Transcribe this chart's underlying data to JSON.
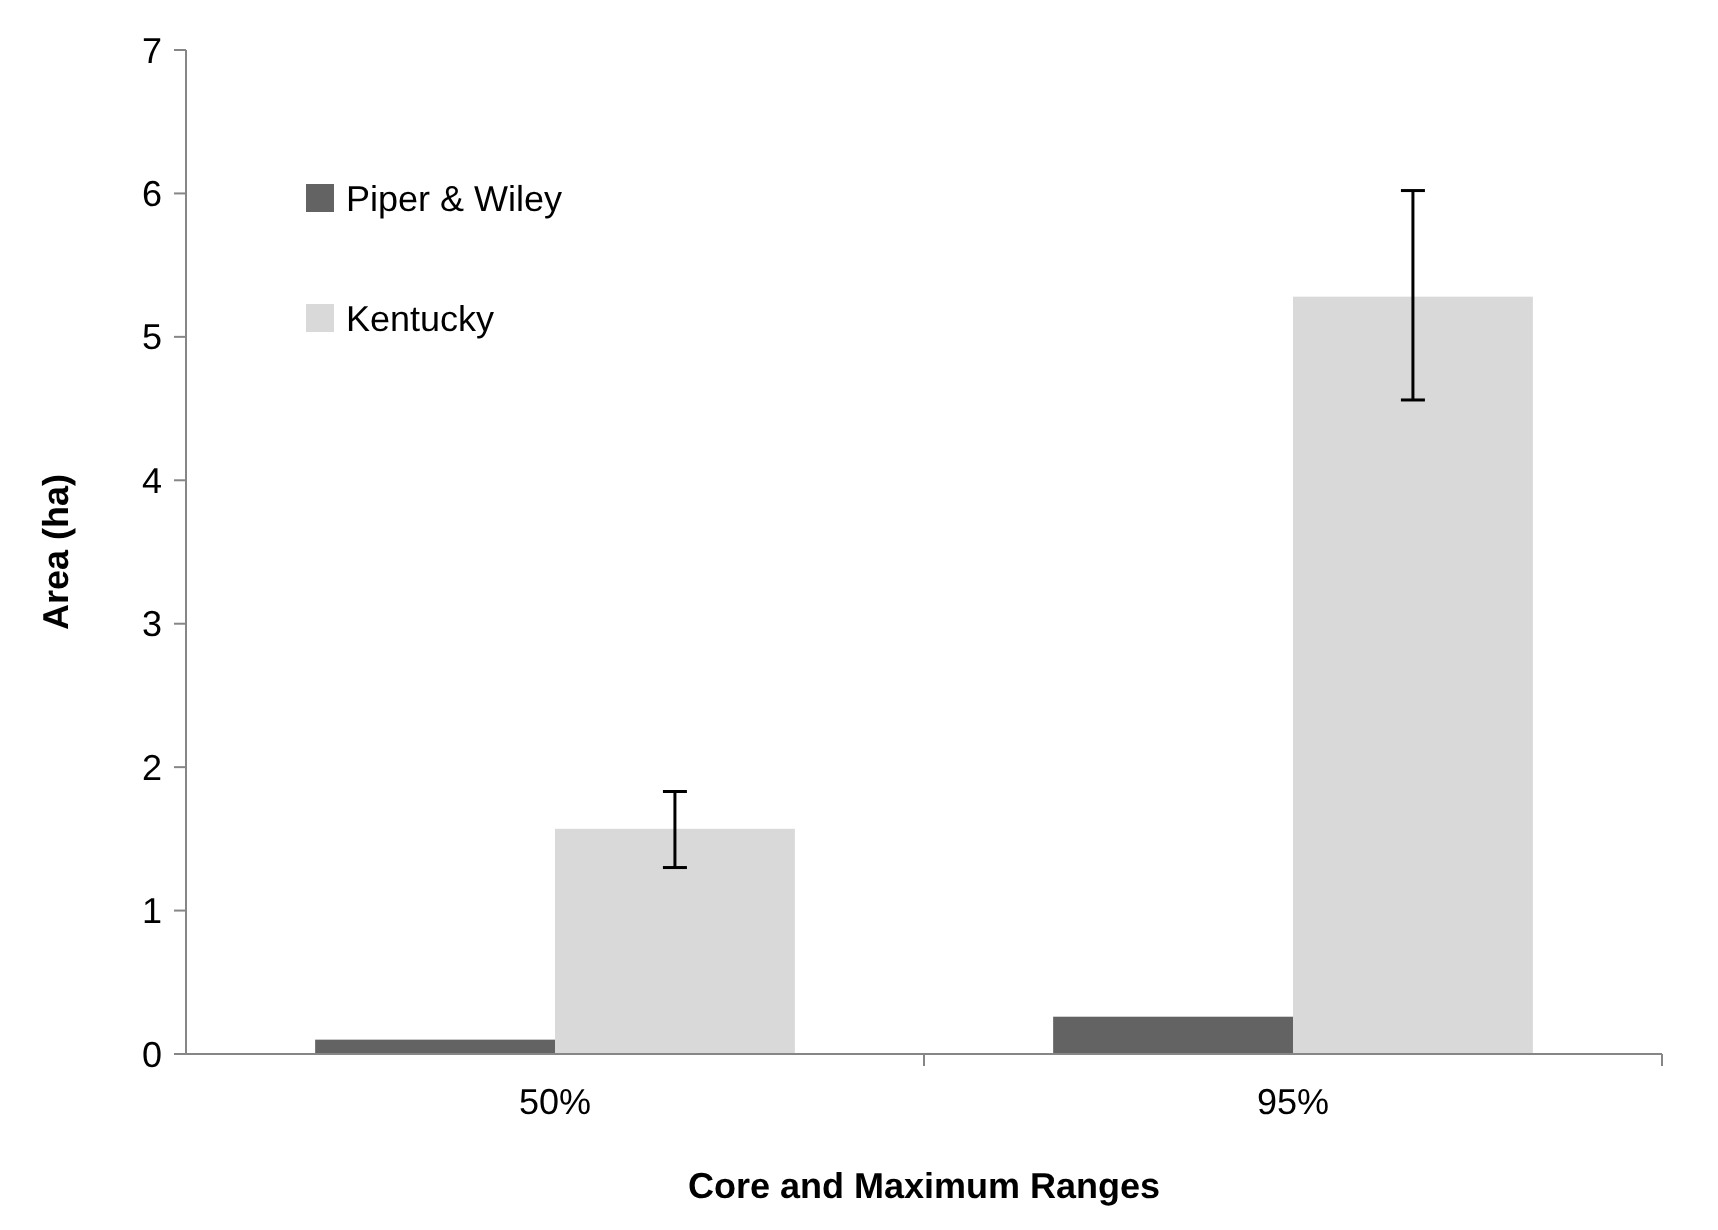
{
  "chart_data": {
    "type": "bar",
    "xlabel": "Core and Maximum Ranges",
    "ylabel": "Area (ha)",
    "categories": [
      "50%",
      "95%"
    ],
    "series": [
      {
        "name": "Piper & Wiley",
        "color": "#636363",
        "values": [
          0.1,
          0.26
        ]
      },
      {
        "name": "Kentucky",
        "color": "#d9d9d9",
        "values": [
          1.57,
          5.28
        ],
        "errors": [
          [
            1.3,
            1.83
          ],
          [
            4.56,
            6.02
          ]
        ]
      }
    ],
    "ylim": [
      0,
      7
    ],
    "yticks": [
      0,
      1,
      2,
      3,
      4,
      5,
      6,
      7
    ],
    "grid": false,
    "legend": "top left"
  }
}
